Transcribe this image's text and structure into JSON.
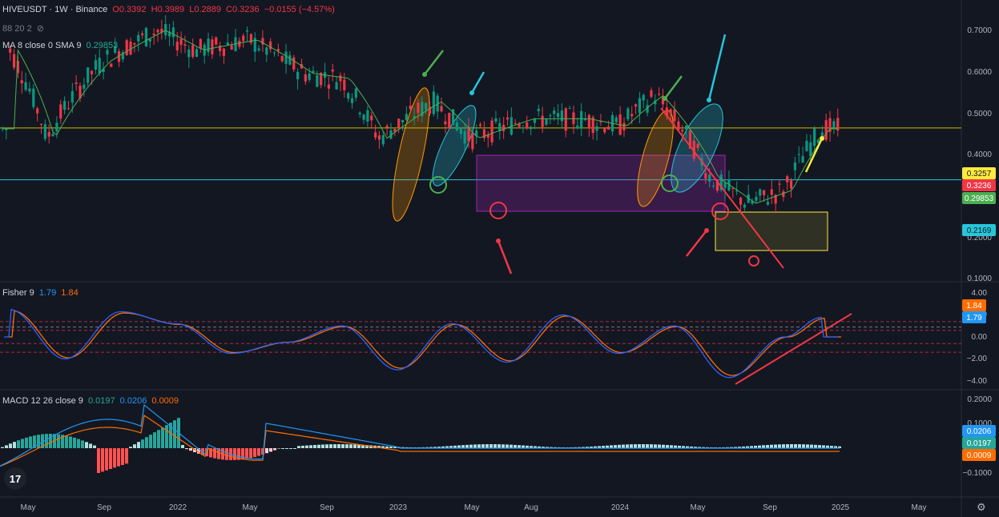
{
  "header": {
    "symbol": "HIVEUSDT · 1W · Binance",
    "o": "O0.3392",
    "h": "H0.3989",
    "l": "L0.2889",
    "c": "C0.3236",
    "change": "−0.0155 (−4.57%)",
    "vol_line": "88 20 2",
    "ma_line": "MA 8 close 0 SMA 9",
    "ma_value": "0.29853"
  },
  "fisher": {
    "title": "Fisher 9",
    "v1": "1.79",
    "v2": "1.84"
  },
  "macd": {
    "title": "MACD 12 26 close 9",
    "v1": "0.0197",
    "v2": "0.0206",
    "v3": "0.0009"
  },
  "x_axis": [
    "May",
    "Sep",
    "2022",
    "May",
    "Sep",
    "2023",
    "May",
    "Aug",
    "2024",
    "May",
    "Sep",
    "2025",
    "May"
  ],
  "price_axis": [
    "0.7000",
    "0.6000",
    "0.5000",
    "0.4000",
    "0.3000",
    "0.2000",
    "0.1000"
  ],
  "fisher_axis": [
    "4.00",
    "2.00",
    "0.00",
    "−2.00",
    "−4.00"
  ],
  "macd_axis": [
    "0.2000",
    "0.1000",
    "−0.1000"
  ],
  "price_labels": {
    "a": "0.3257",
    "b": "0.3236",
    "c": "0.29853",
    "d": "0.2169"
  },
  "fisher_labels": {
    "a": "1.84",
    "b": "1.79"
  },
  "macd_labels": {
    "a": "0.0206",
    "b": "0.0197",
    "c": "0.0009"
  },
  "colors": {
    "up": "#089981",
    "down": "#f23645",
    "fast": "#2962ff",
    "slow": "#ff6d00",
    "ma": "#4caf50",
    "bg": "#131722"
  },
  "chart_data": [
    {
      "type": "candlestick",
      "title": "HIVEUSDT · 1W · Binance",
      "x_range": [
        "2021-04",
        "2025-06"
      ],
      "ylim": [
        0.08,
        0.78
      ],
      "y_scale": "log",
      "x": [
        "2024-11-25",
        "2024-12-02",
        "2024-12-09"
      ],
      "open": [
        0.22,
        0.3,
        0.3392
      ],
      "high": [
        0.4,
        0.46,
        0.3989
      ],
      "low": [
        0.2,
        0.28,
        0.2889
      ],
      "close": [
        0.3,
        0.3392,
        0.3236
      ],
      "ma_sma_value": 0.29853,
      "horizontal_lines": [
        0.3257,
        0.2169
      ],
      "series_anchor_points": [
        {
          "name": "close",
          "x": [
            "2021-04",
            "2021-06",
            "2021-09",
            "2021-12",
            "2022-02",
            "2022-05",
            "2022-08",
            "2022-10",
            "2022-12",
            "2023-03",
            "2023-05",
            "2023-08",
            "2023-11",
            "2024-01",
            "2024-03",
            "2024-06",
            "2024-08",
            "2024-10",
            "2024-12"
          ],
          "values": [
            0.6,
            0.3,
            0.55,
            0.7,
            0.6,
            0.65,
            0.5,
            0.48,
            0.3,
            0.4,
            0.3,
            0.35,
            0.35,
            0.33,
            0.42,
            0.22,
            0.18,
            0.2,
            0.3236
          ]
        }
      ]
    },
    {
      "type": "line",
      "title": "Fisher 9",
      "ylim": [
        -4.5,
        4.5
      ],
      "series": [
        {
          "name": "1.79",
          "last": 1.79
        },
        {
          "name": "1.84",
          "last": 1.84
        }
      ],
      "x": [
        "2021-04",
        "2021-07",
        "2021-10",
        "2022-01",
        "2022-04",
        "2022-07",
        "2022-10",
        "2023-01",
        "2023-04",
        "2023-07",
        "2023-10",
        "2024-01",
        "2024-04",
        "2024-07",
        "2024-10",
        "2024-12"
      ],
      "values": [
        2.5,
        -2.0,
        2.3,
        1.2,
        -1.5,
        -0.5,
        1.0,
        -3.0,
        1.2,
        -2.3,
        2.0,
        -1.5,
        1.0,
        -3.7,
        0.0,
        1.79
      ]
    },
    {
      "type": "bar",
      "title": "MACD 12 26 close 9",
      "ylim": [
        -0.15,
        0.22
      ],
      "last": {
        "macd": 0.0206,
        "signal": 0.0197,
        "histogram": 0.0009
      }
    }
  ]
}
